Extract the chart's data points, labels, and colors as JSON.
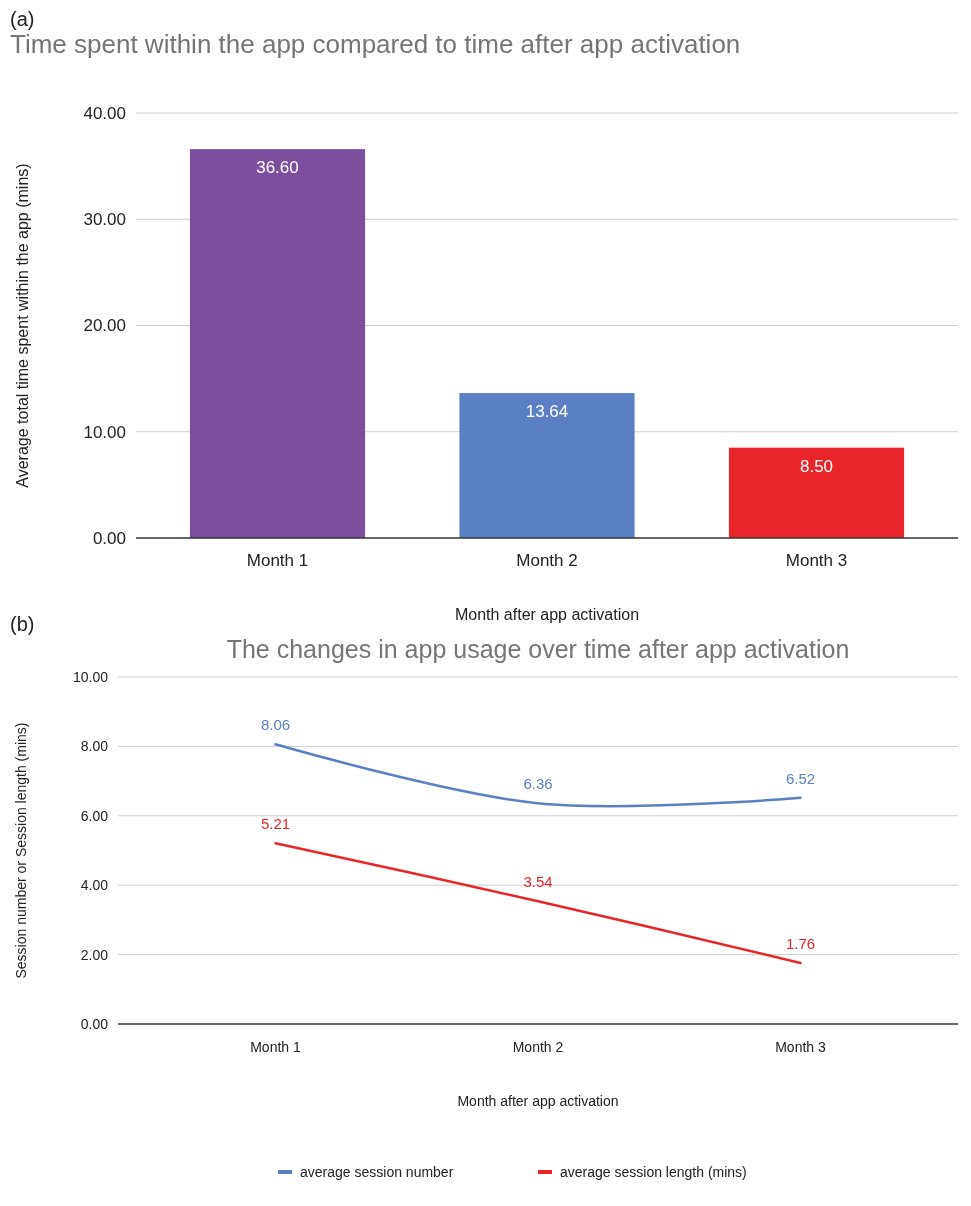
{
  "chart_data": [
    {
      "type": "bar",
      "title": "Time spent within the app compared to time after app activation",
      "annotations": [
        "(a)"
      ],
      "xlabel": "Month after app activation",
      "ylabel": "Average total time spent within the app (mins)",
      "categories": [
        "Month 1",
        "Month 2",
        "Month 3"
      ],
      "values": [
        36.6,
        13.64,
        8.5
      ],
      "colors": [
        "#7b4f9e",
        "#5a7fc4",
        "#e8262a"
      ],
      "value_labels": [
        "36.60",
        "13.64",
        "8.50"
      ],
      "ylim": [
        0,
        40
      ],
      "yticks": [
        {
          "value": 0,
          "label": "0.00"
        },
        {
          "value": 10,
          "label": "10.00"
        },
        {
          "value": 20,
          "label": "20.00"
        },
        {
          "value": 30,
          "label": "30.00"
        },
        {
          "value": 40,
          "label": "40.00"
        }
      ],
      "grid": "y"
    },
    {
      "type": "line",
      "title": "The changes in app usage over time after app activation",
      "annotations": [
        "(b)"
      ],
      "xlabel": "Month after app activation",
      "ylabel": "Session number or Session length (mins)",
      "categories": [
        "Month 1",
        "Month 2",
        "Month 3"
      ],
      "series": [
        {
          "name": "average session number",
          "color": "#5a7fc4",
          "values": [
            8.06,
            6.36,
            6.52
          ],
          "value_labels": [
            "8.06",
            "6.36",
            "6.52"
          ]
        },
        {
          "name": "average session length (mins)",
          "color": "#e8262a",
          "values": [
            5.21,
            3.54,
            1.76
          ],
          "value_labels": [
            "5.21",
            "3.54",
            "1.76"
          ]
        }
      ],
      "ylim": [
        0,
        10
      ],
      "yticks": [
        {
          "value": 0,
          "label": "0.00"
        },
        {
          "value": 2,
          "label": "2.00"
        },
        {
          "value": 4,
          "label": "4.00"
        },
        {
          "value": 6,
          "label": "6.00"
        },
        {
          "value": 8,
          "label": "8.00"
        },
        {
          "value": 10,
          "label": "10.00"
        }
      ],
      "grid": "y",
      "legend": "bottom"
    }
  ]
}
